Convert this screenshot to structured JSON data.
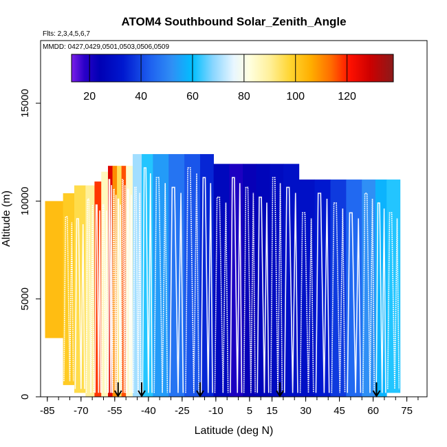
{
  "chart_data": {
    "type": "heatmap",
    "title": "ATOM4 Southbound Solar_Zenith_Angle",
    "flights_label": "Flts: 2,3,4,5,6,7",
    "dates_label": "MMDD: 0427,0429,0501,0503,0506,0509",
    "xlabel": "Latitude (deg N)",
    "ylabel": "Altitude (m)",
    "xlim": [
      -88,
      84
    ],
    "ylim": [
      0,
      18200
    ],
    "x_ticks": [
      -85,
      -70,
      -55,
      -40,
      -25,
      -10,
      5,
      15,
      30,
      45,
      60,
      75
    ],
    "x_tick_labels": [
      "-85",
      "-70",
      "-55",
      "-40",
      "-25",
      "-10",
      "5",
      "15",
      "30",
      "45",
      "60",
      "75"
    ],
    "y_ticks": [
      0,
      5000,
      10000,
      15000
    ],
    "y_tick_labels": [
      "0",
      "5000",
      "10000",
      "15000"
    ],
    "colorbar": {
      "range": [
        13,
        138
      ],
      "ticks": [
        20,
        40,
        60,
        80,
        100,
        120
      ],
      "tick_labels": [
        "20",
        "40",
        "60",
        "80",
        "100",
        "120"
      ],
      "stops": [
        {
          "v": 13,
          "c": "#7b1fe8"
        },
        {
          "v": 18,
          "c": "#2a00c8"
        },
        {
          "v": 24,
          "c": "#0000b4"
        },
        {
          "v": 33,
          "c": "#0018cf"
        },
        {
          "v": 44,
          "c": "#1f63f0"
        },
        {
          "v": 52,
          "c": "#2f8ff5"
        },
        {
          "v": 60,
          "c": "#00bfff"
        },
        {
          "v": 68,
          "c": "#8ad6ff"
        },
        {
          "v": 76,
          "c": "#e8f6ff"
        },
        {
          "v": 82,
          "c": "#ffffe0"
        },
        {
          "v": 90,
          "c": "#fff09a"
        },
        {
          "v": 98,
          "c": "#ffd530"
        },
        {
          "v": 106,
          "c": "#ffae00"
        },
        {
          "v": 114,
          "c": "#ff6a00"
        },
        {
          "v": 121,
          "c": "#ff1000"
        },
        {
          "v": 129,
          "c": "#cc0000"
        },
        {
          "v": 138,
          "c": "#8b1a1a"
        }
      ]
    },
    "arrow_latitudes": [
      -53.5,
      -43,
      -17,
      18.5,
      61.5
    ],
    "columns": [
      {
        "x0": -86,
        "x1": -78,
        "bottom": 3000,
        "top": 10000,
        "value": 103
      },
      {
        "x0": -78,
        "x1": -73,
        "bottom": 600,
        "top": 10400,
        "value": 100
      },
      {
        "x0": -73,
        "x1": -68,
        "bottom": 200,
        "top": 10800,
        "value": 96
      },
      {
        "x0": -68,
        "x1": -64,
        "bottom": 0,
        "top": 10800,
        "value": 90
      },
      {
        "x0": -64,
        "x1": -61,
        "bottom": 0,
        "top": 11000,
        "value": 118
      },
      {
        "x0": -61,
        "x1": -58,
        "bottom": 0,
        "top": 11500,
        "value": 86
      },
      {
        "x0": -58,
        "x1": -56,
        "bottom": 0,
        "top": 11800,
        "value": 126
      },
      {
        "x0": -56,
        "x1": -54,
        "bottom": 0,
        "top": 11800,
        "value": 110
      },
      {
        "x0": -54,
        "x1": -52,
        "bottom": 0,
        "top": 11800,
        "value": 95
      },
      {
        "x0": -52,
        "x1": -50,
        "bottom": 0,
        "top": 11800,
        "value": 116
      },
      {
        "x0": -50,
        "x1": -47,
        "bottom": 0,
        "top": 11800,
        "value": 84
      },
      {
        "x0": -47,
        "x1": -43,
        "bottom": 0,
        "top": 12400,
        "value": 70
      },
      {
        "x0": -43,
        "x1": -38,
        "bottom": 0,
        "top": 12400,
        "value": 62
      },
      {
        "x0": -38,
        "x1": -31,
        "bottom": 0,
        "top": 12400,
        "value": 54
      },
      {
        "x0": -31,
        "x1": -24,
        "bottom": 0,
        "top": 12400,
        "value": 47
      },
      {
        "x0": -24,
        "x1": -17,
        "bottom": 0,
        "top": 12400,
        "value": 42
      },
      {
        "x0": -17,
        "x1": -11,
        "bottom": 0,
        "top": 12400,
        "value": 35
      },
      {
        "x0": -11,
        "x1": -4,
        "bottom": 0,
        "top": 11900,
        "value": 27
      },
      {
        "x0": -4,
        "x1": 2,
        "bottom": 0,
        "top": 11900,
        "value": 20
      },
      {
        "x0": 2,
        "x1": 8,
        "bottom": 0,
        "top": 11900,
        "value": 23
      },
      {
        "x0": 8,
        "x1": 14,
        "bottom": 0,
        "top": 11900,
        "value": 26
      },
      {
        "x0": 14,
        "x1": 20,
        "bottom": 0,
        "top": 11900,
        "value": 28
      },
      {
        "x0": 20,
        "x1": 27,
        "bottom": 0,
        "top": 11900,
        "value": 30
      },
      {
        "x0": 27,
        "x1": 34,
        "bottom": 0,
        "top": 11100,
        "value": 30
      },
      {
        "x0": 34,
        "x1": 41,
        "bottom": 0,
        "top": 11100,
        "value": 33
      },
      {
        "x0": 41,
        "x1": 48,
        "bottom": 0,
        "top": 11100,
        "value": 38
      },
      {
        "x0": 48,
        "x1": 55,
        "bottom": 0,
        "top": 11100,
        "value": 45
      },
      {
        "x0": 55,
        "x1": 61,
        "bottom": 0,
        "top": 11100,
        "value": 52
      },
      {
        "x0": 61,
        "x1": 66,
        "bottom": 0,
        "top": 11100,
        "value": 58
      },
      {
        "x0": 66,
        "x1": 72,
        "bottom": 200,
        "top": 11100,
        "value": 62
      }
    ],
    "flight_track_color": "#ffffff",
    "arrow_color": "#000000"
  }
}
